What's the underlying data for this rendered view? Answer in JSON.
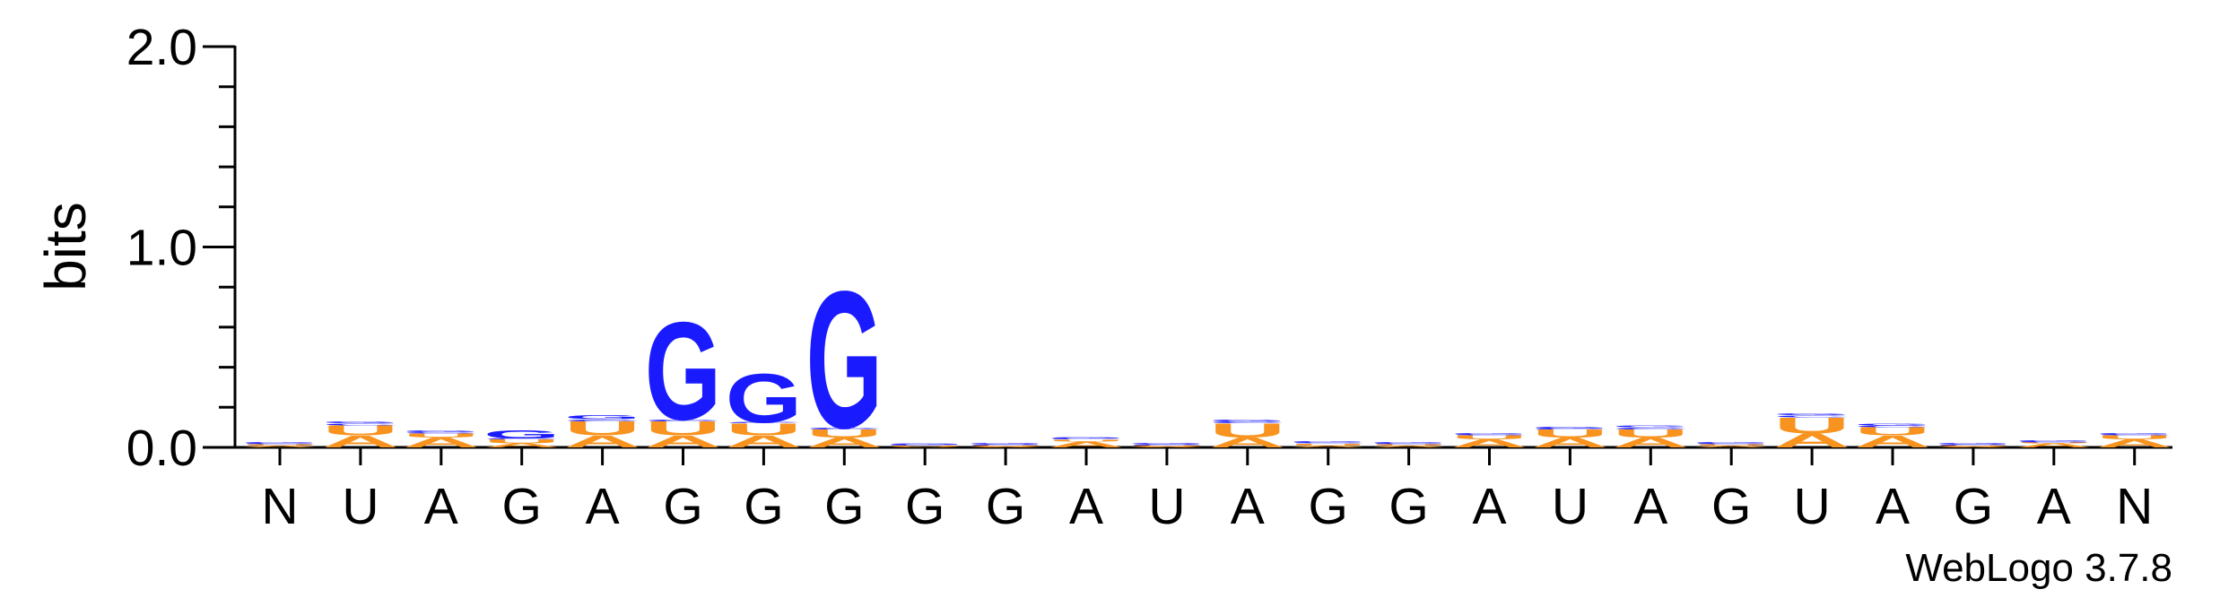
{
  "chart_data": {
    "type": "logo",
    "ylabel": "bits",
    "footer": "WebLogo 3.7.8",
    "categories": [
      "N",
      "U",
      "A",
      "G",
      "A",
      "G",
      "G",
      "G",
      "G",
      "G",
      "A",
      "U",
      "A",
      "G",
      "G",
      "A",
      "U",
      "A",
      "G",
      "U",
      "A",
      "G",
      "A",
      "N"
    ],
    "ylim": [
      0,
      2
    ],
    "yticks": [
      {
        "value": 0,
        "label": "0.0"
      },
      {
        "value": 1,
        "label": "1.0"
      },
      {
        "value": 2,
        "label": "2.0"
      }
    ],
    "yminorticks": [
      0.2,
      0.4,
      0.6,
      0.8,
      1.2,
      1.4,
      1.6,
      1.8
    ],
    "series": [
      {
        "name": "A",
        "color": "#f7931e",
        "values": [
          0.01,
          0.06,
          0.05,
          0.02,
          0.06,
          0.06,
          0.06,
          0.05,
          0.003,
          0.005,
          0.03,
          0.005,
          0.05,
          0.01,
          0.01,
          0.04,
          0.05,
          0.05,
          0.01,
          0.07,
          0.06,
          0.005,
          0.02,
          0.04
        ]
      },
      {
        "name": "U",
        "color": "#f7931e",
        "values": [
          0.005,
          0.05,
          0.02,
          0.02,
          0.07,
          0.07,
          0.06,
          0.04,
          0.005,
          0.005,
          0.01,
          0.005,
          0.07,
          0.01,
          0.005,
          0.02,
          0.04,
          0.04,
          0.005,
          0.08,
          0.04,
          0.005,
          0.005,
          0.02
        ]
      },
      {
        "name": "C",
        "color": "#1a1aff",
        "values": [
          0.005,
          0.01,
          0.005,
          0.005,
          0.01,
          0.01,
          0.005,
          0.01,
          0.005,
          0.005,
          0.005,
          0.005,
          0.01,
          0.005,
          0.005,
          0.005,
          0.005,
          0.01,
          0.005,
          0.01,
          0.01,
          0.005,
          0.005,
          0.005
        ]
      },
      {
        "name": "G",
        "color": "#1a1aff",
        "values": [
          0.005,
          0.01,
          0.01,
          0.04,
          0.02,
          0.5,
          0.25,
          0.7,
          0.005,
          0.005,
          0.005,
          0.005,
          0.01,
          0.005,
          0.005,
          0.005,
          0.01,
          0.01,
          0.005,
          0.01,
          0.01,
          0.005,
          0.005,
          0.005
        ]
      }
    ]
  }
}
